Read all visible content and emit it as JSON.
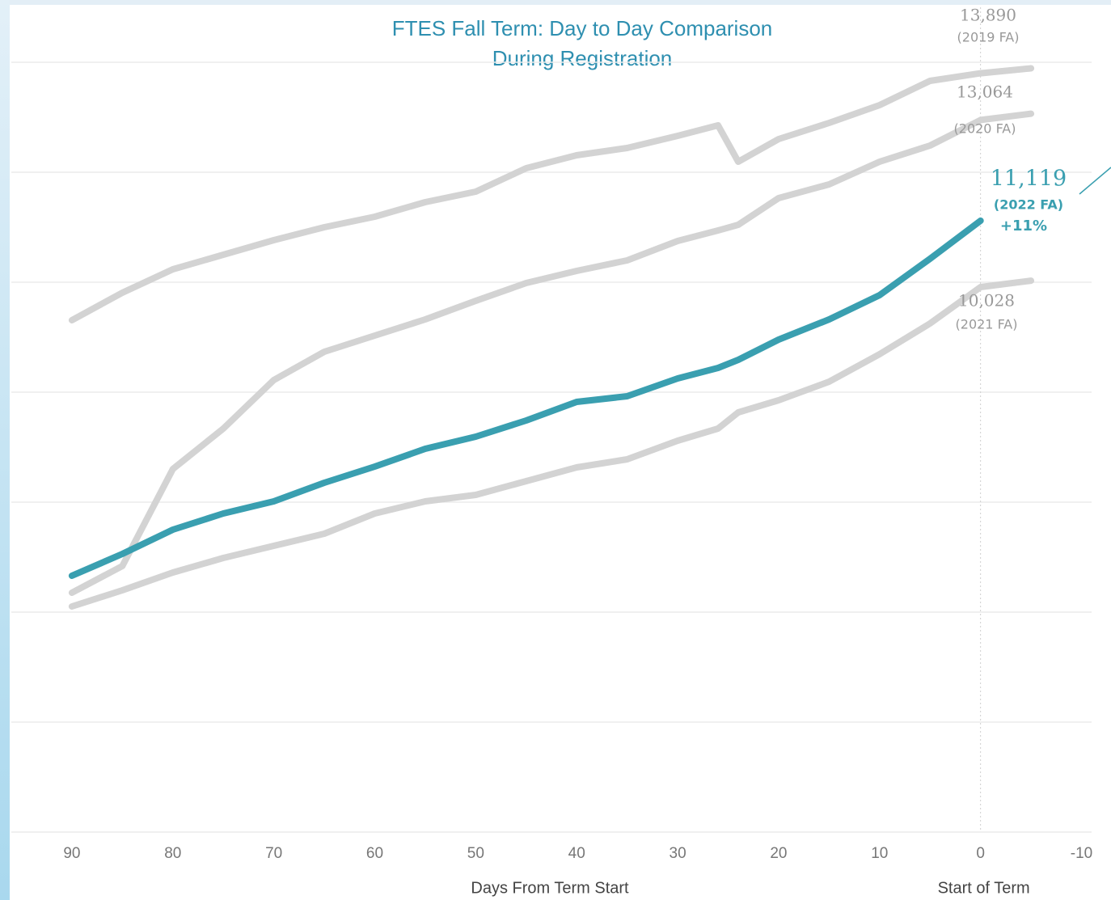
{
  "chart_data": {
    "type": "line",
    "title": "FTES Fall Term: Day to Day Comparison",
    "subtitle": "During Registration",
    "x_label": "Days From Term Start",
    "annotation": "Start of Term",
    "annotation_x": 0,
    "x": [
      90,
      85,
      80,
      75,
      70,
      65,
      60,
      55,
      50,
      45,
      40,
      35,
      30,
      26,
      24,
      20,
      15,
      10,
      5,
      0,
      -5
    ],
    "xlim": [
      96,
      -11
    ],
    "xticks": [
      90,
      80,
      70,
      60,
      50,
      40,
      30,
      20,
      10,
      0,
      -10
    ],
    "ylim": [
      0,
      15000
    ],
    "yticks": [
      0,
      2000,
      4000,
      6000,
      8000,
      10000,
      12000,
      14000
    ],
    "grid": true,
    "series": [
      {
        "name": "(2019 FA)",
        "color": "#d3d3d3",
        "end_label": "13,890",
        "values": [
          9309,
          9809,
          10235,
          10500,
          10765,
          11000,
          11191,
          11456,
          11647,
          12074,
          12309,
          12441,
          12662,
          12853,
          12191,
          12603,
          12897,
          13221,
          13662,
          13800,
          13890
        ]
      },
      {
        "name": "(2020 FA)",
        "color": "#d3d3d3",
        "end_label": "13,064",
        "values": [
          4353,
          4838,
          6603,
          7338,
          8221,
          8735,
          9029,
          9323,
          9662,
          9985,
          10206,
          10397,
          10750,
          10941,
          11044,
          11529,
          11779,
          12191,
          12485,
          12950,
          13064
        ]
      },
      {
        "name": "(2021 FA)",
        "color": "#d3d3d3",
        "end_label": "10,028",
        "values": [
          4103,
          4397,
          4721,
          4985,
          5206,
          5426,
          5794,
          6015,
          6132,
          6382,
          6632,
          6779,
          7118,
          7338,
          7632,
          7853,
          8191,
          8691,
          9250,
          9912,
          10028
        ]
      },
      {
        "name": "(2022 FA)",
        "color": "#3a9fb0",
        "end_label": "11,119",
        "change": "+11%",
        "values": [
          4662,
          5059,
          5500,
          5794,
          6015,
          6353,
          6647,
          6971,
          7191,
          7485,
          7823,
          7926,
          8250,
          8441,
          8588,
          8956,
          9324,
          9765,
          10426,
          11119,
          null
        ]
      }
    ]
  }
}
